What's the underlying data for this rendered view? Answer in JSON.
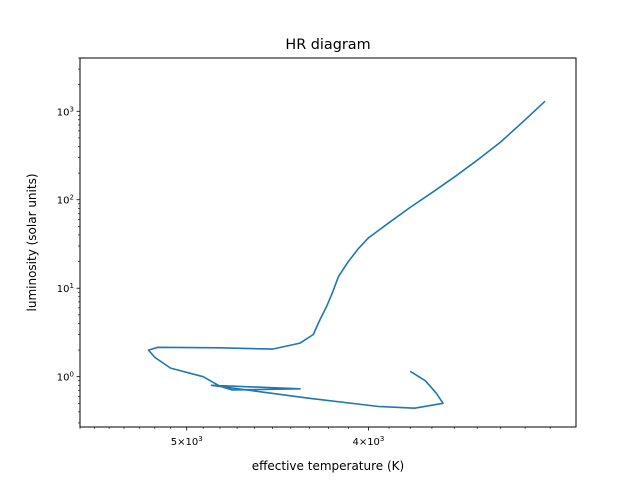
{
  "chart_data": {
    "type": "line",
    "title": "HR diagram",
    "xlabel": "effective temperature (K)",
    "ylabel": "luminosity (solar units)",
    "x_scale": "log",
    "x_reversed": true,
    "y_scale": "log",
    "xlim": [
      5700,
      3100
    ],
    "ylim": [
      0.27,
      4000
    ],
    "x_ticks": [
      {
        "value": 5000,
        "base": "5×10",
        "exp": "3"
      },
      {
        "value": 4000,
        "base": "4×10",
        "exp": "3"
      }
    ],
    "y_ticks": [
      {
        "value": 1,
        "base": "10",
        "exp": "0"
      },
      {
        "value": 10,
        "base": "10",
        "exp": "1"
      },
      {
        "value": 100,
        "base": "10",
        "exp": "2"
      },
      {
        "value": 1000,
        "base": "10",
        "exp": "3"
      }
    ],
    "grid": false,
    "legend": "none",
    "line_color": "#1f77b4",
    "series": [
      {
        "x": [
          3800,
          3730,
          3680,
          3650,
          3780,
          3950,
          4300,
          4850,
          4350,
          4730,
          4800,
          4900,
          5100,
          5200,
          5240,
          5180,
          4800,
          4500,
          4350,
          4280,
          4250,
          4210,
          4180,
          4150,
          4100,
          4050,
          4000,
          3900,
          3800,
          3700,
          3600,
          3500,
          3400,
          3300,
          3220
        ],
        "y": [
          1.15,
          0.9,
          0.65,
          0.5,
          0.44,
          0.46,
          0.57,
          0.8,
          0.73,
          0.71,
          0.78,
          1.0,
          1.25,
          1.65,
          2.0,
          2.15,
          2.12,
          2.05,
          2.4,
          3.0,
          4.2,
          6.3,
          9.0,
          13.5,
          20.0,
          28.0,
          37.0,
          55.0,
          82.0,
          120.0,
          180.0,
          280.0,
          450.0,
          800.0,
          1300.0
        ]
      }
    ]
  }
}
